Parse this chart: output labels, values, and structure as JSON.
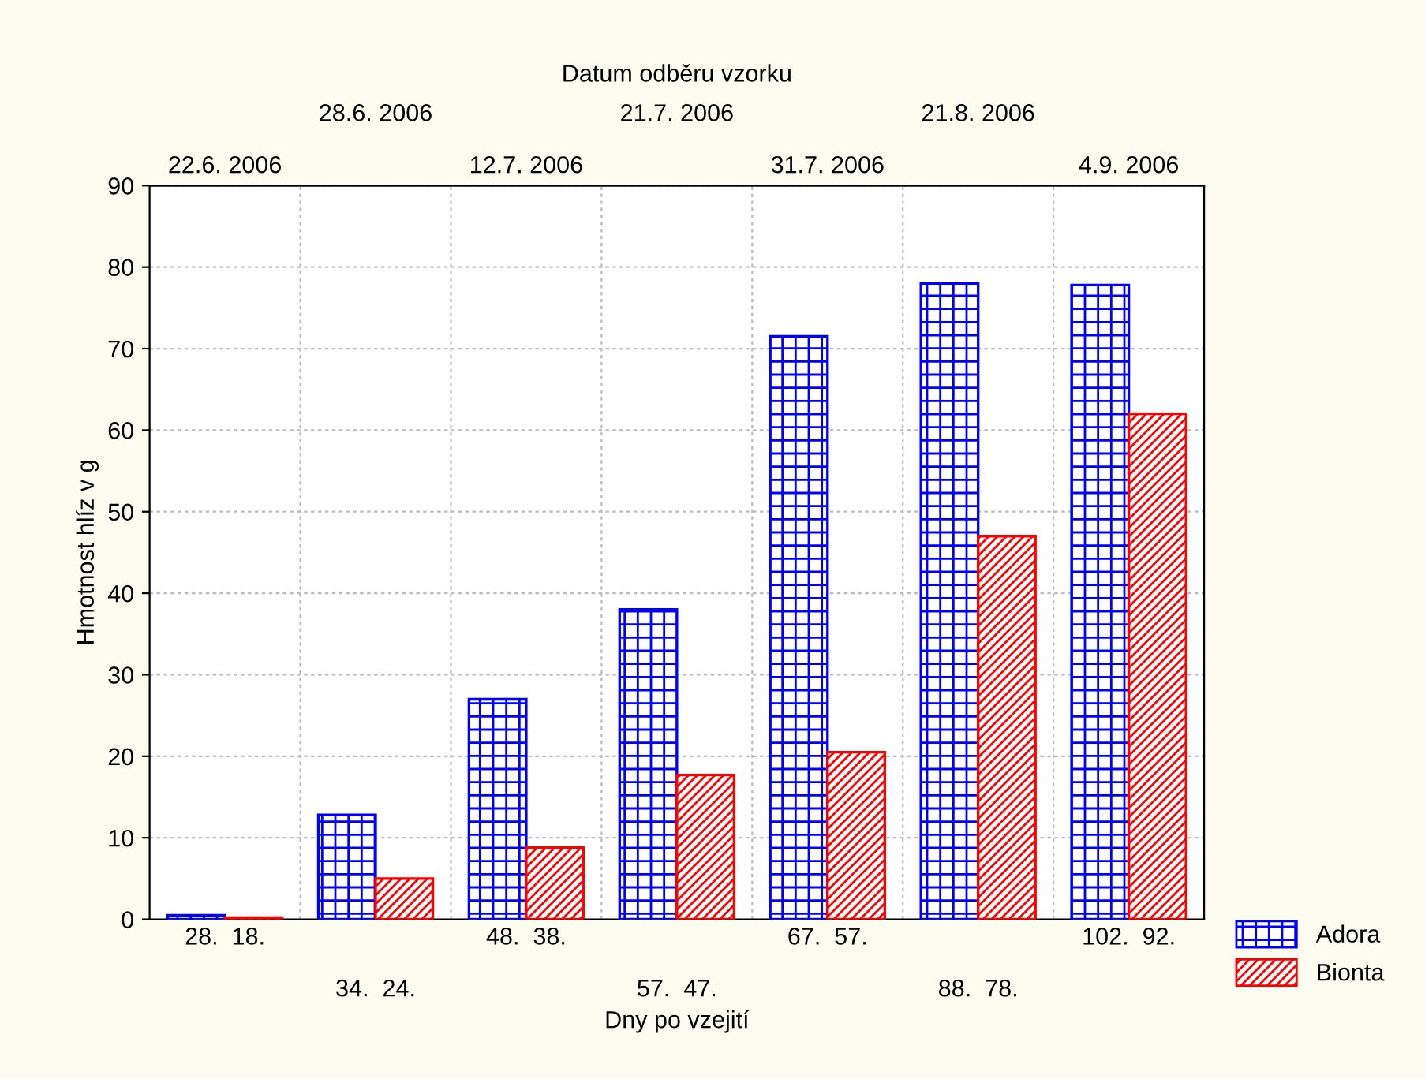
{
  "chart_data": {
    "type": "bar",
    "xlabel": "Dny po vzejití",
    "ylabel": "Hmotnost hlíz v g",
    "x2label": "Datum odběru vzorku",
    "categories": [
      "28.  18.",
      "34.  24.",
      "48.  38.",
      "57.  47.",
      "67.  57.",
      "88.  78.",
      "102.  92."
    ],
    "annotations": [
      "22.6. 2006",
      "28.6. 2006",
      "12.7. 2006",
      "21.7. 2006",
      "31.7. 2006",
      "21.8. 2006",
      "4.9. 2006"
    ],
    "series": [
      {
        "name": "Adora",
        "color": "#0000ff",
        "values": [
          0.5,
          12.8,
          27,
          38,
          71.5,
          78,
          77.8
        ]
      },
      {
        "name": "Bionta",
        "color": "#ff0000",
        "values": [
          0.2,
          5,
          8.8,
          17.7,
          20.5,
          47,
          62
        ]
      }
    ],
    "ylim": [
      0,
      90
    ],
    "yticks": [
      0,
      10,
      20,
      30,
      40,
      50,
      60,
      70,
      80,
      90
    ],
    "grid": true,
    "legend": "bottom right"
  }
}
